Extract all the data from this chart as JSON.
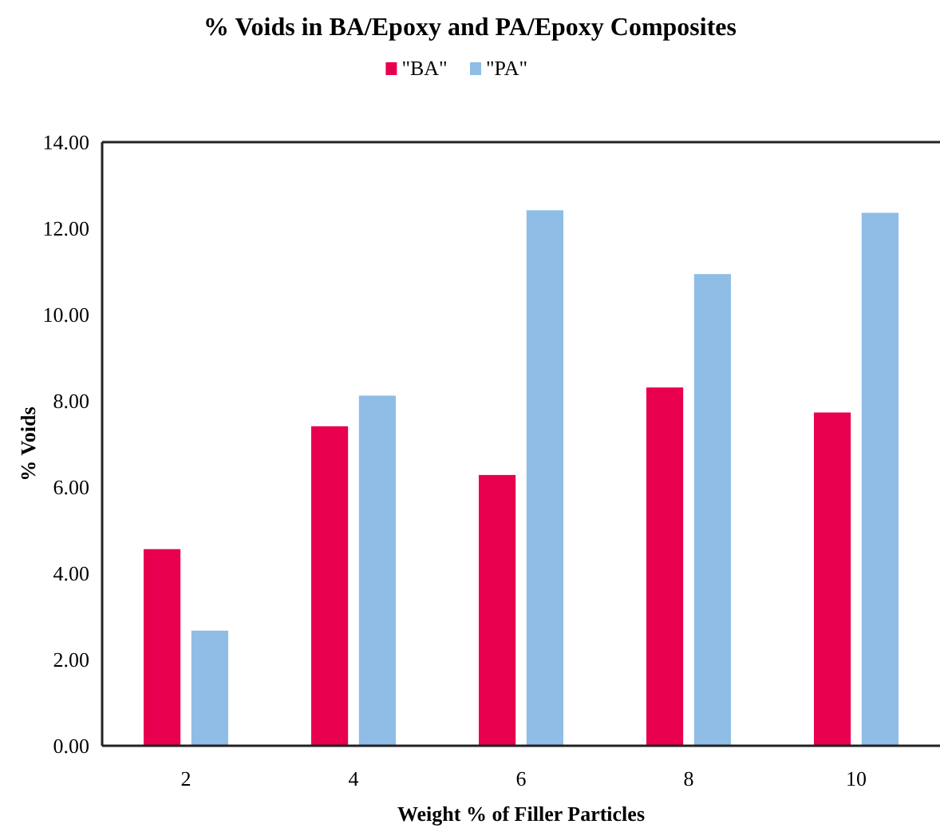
{
  "chart_data": {
    "type": "bar",
    "title": "% Voids in BA/Epoxy and PA/Epoxy Composites",
    "xlabel": "Weight % of Filler Particles",
    "ylabel": "% Voids",
    "categories": [
      "2",
      "4",
      "6",
      "8",
      "10"
    ],
    "series": [
      {
        "name": "\"BA\"",
        "color": "#e8004f",
        "values": [
          4.56,
          7.41,
          6.28,
          8.31,
          7.73
        ]
      },
      {
        "name": "\"PA\"",
        "color": "#8fbde6",
        "values": [
          2.67,
          8.12,
          12.42,
          10.94,
          12.36
        ]
      }
    ],
    "ylim": [
      0,
      14
    ],
    "yticks": [
      {
        "value": 0,
        "label": "0.00"
      },
      {
        "value": 2,
        "label": "2.00"
      },
      {
        "value": 4,
        "label": "4.00"
      },
      {
        "value": 6,
        "label": "6.00"
      },
      {
        "value": 8,
        "label": "8.00"
      },
      {
        "value": 10,
        "label": "10.00"
      },
      {
        "value": 12,
        "label": "12.00"
      },
      {
        "value": 14,
        "label": "14.00"
      }
    ],
    "legend": "top"
  }
}
